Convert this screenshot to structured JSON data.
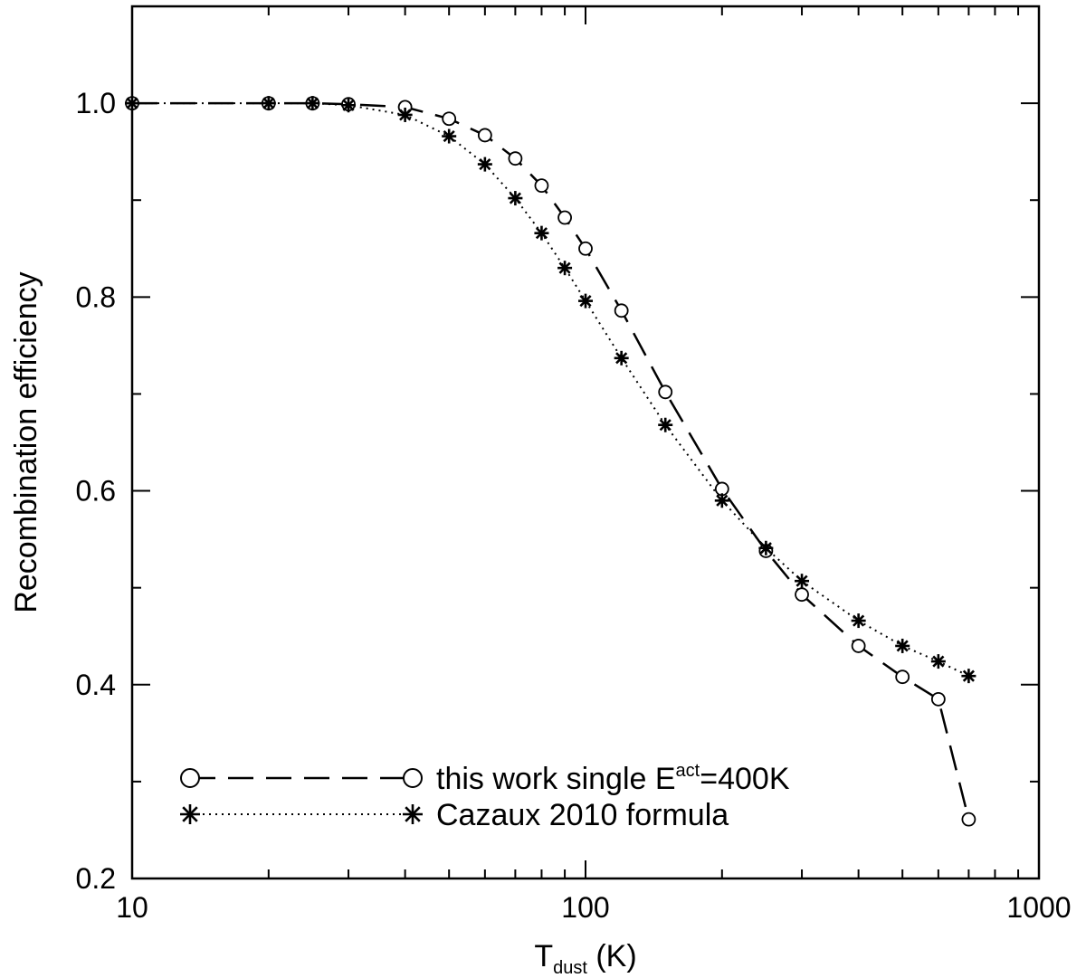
{
  "chart_data": {
    "type": "line",
    "title": "",
    "xlabel": {
      "main": "T",
      "sub": "dust",
      "unit": " (K)"
    },
    "ylabel": "Recombination efficiency",
    "xscale": "log",
    "xlim": [
      10,
      1000
    ],
    "ylim": [
      0.2,
      1.1
    ],
    "x_ticks": [
      {
        "value": 10,
        "label": "10"
      },
      {
        "value": 100,
        "label": "100"
      },
      {
        "value": 1000,
        "label": "1000"
      }
    ],
    "y_ticks": [
      {
        "value": 0.2,
        "label": "0.2"
      },
      {
        "value": 0.4,
        "label": "0.4"
      },
      {
        "value": 0.6,
        "label": "0.6"
      },
      {
        "value": 0.8,
        "label": "0.8"
      },
      {
        "value": 1.0,
        "label": "1.0"
      }
    ],
    "grid": false,
    "legend_position": "bottom-left",
    "series": [
      {
        "name": "this work single E",
        "name_sup": "act",
        "name_tail": "=400K",
        "marker": "circle",
        "line": "dashed",
        "x": [
          10,
          20,
          25,
          30,
          40,
          50,
          60,
          70,
          80,
          90,
          100,
          120,
          150,
          200,
          250,
          300,
          400,
          500,
          600,
          700
        ],
        "y": [
          1.0,
          1.0,
          1.0,
          0.999,
          0.996,
          0.984,
          0.967,
          0.943,
          0.915,
          0.882,
          0.85,
          0.786,
          0.702,
          0.602,
          0.538,
          0.493,
          0.44,
          0.408,
          0.385,
          0.261
        ]
      },
      {
        "name": "Cazaux 2010 formula",
        "marker": "asterisk",
        "line": "dotted",
        "x": [
          10,
          20,
          25,
          30,
          40,
          50,
          60,
          70,
          80,
          90,
          100,
          120,
          150,
          200,
          250,
          300,
          400,
          500,
          600,
          700
        ],
        "y": [
          1.0,
          1.0,
          1.0,
          0.998,
          0.988,
          0.966,
          0.937,
          0.902,
          0.866,
          0.83,
          0.796,
          0.737,
          0.668,
          0.59,
          0.541,
          0.507,
          0.466,
          0.44,
          0.424,
          0.409
        ]
      }
    ]
  }
}
